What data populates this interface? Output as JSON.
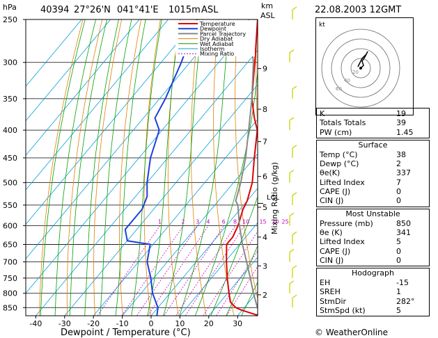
{
  "header": {
    "station": "40394",
    "lat": "27°26'N",
    "lon": "041°41'E",
    "elev": "1015m",
    "asl": "ASL",
    "datetime": "22.08.2003  12GMT"
  },
  "axes": {
    "p_label": "hPa",
    "km_label": "km",
    "asl_label": "ASL",
    "xlabel": "Dewpoint / Temperature (°C)",
    "mixing_label": "Mixing Ratio (g/kg)",
    "lcl_label": "LCL",
    "p_ticks": [
      "250",
      "300",
      "350",
      "400",
      "450",
      "500",
      "550",
      "600",
      "650",
      "700",
      "750",
      "800",
      "850"
    ],
    "t_ticks": [
      "-40",
      "-30",
      "-20",
      "-10",
      "0",
      "10",
      "20",
      "30"
    ],
    "km_ticks": [
      "9",
      "8",
      "7",
      "6",
      "5",
      "4",
      "3",
      "2"
    ],
    "mixing_ticks": [
      "1",
      "2",
      "3",
      "4",
      "6",
      "8",
      "10",
      "15",
      "20",
      "25"
    ]
  },
  "legend": {
    "items": [
      {
        "label": "Temperature",
        "color": "#e00000"
      },
      {
        "label": "Dewpoint",
        "color": "#1a3fe0"
      },
      {
        "label": "Parcel Trajectory",
        "color": "#888888"
      },
      {
        "label": "Dry Adiabat",
        "color": "#e08000"
      },
      {
        "label": "Wet Adiabat",
        "color": "#00a000"
      },
      {
        "label": "Isotherm",
        "color": "#00a0e0"
      },
      {
        "label": "Mixing Ratio",
        "color": "#c000c0"
      }
    ]
  },
  "chart_data": {
    "type": "line",
    "title": "40394  27°26'N  041°41'E  1015m ASL",
    "xlabel": "Dewpoint / Temperature (°C)",
    "ylabel": "hPa",
    "xlim": [
      -40,
      37
    ],
    "ylim": [
      880,
      250
    ],
    "yscale": "log",
    "skew": true,
    "series": [
      {
        "name": "Temperature",
        "color": "#e00000",
        "p": [
          880,
          860,
          850,
          830,
          800,
          750,
          700,
          650,
          630,
          600,
          560,
          540,
          500,
          450,
          400,
          380,
          350,
          300,
          250
        ],
        "t": [
          37.5,
          30,
          27,
          23.5,
          20.5,
          15.5,
          10.5,
          5.5,
          5.5,
          4,
          1,
          0,
          -3.5,
          -10,
          -17,
          -21.5,
          -28,
          -37.5,
          -49
        ]
      },
      {
        "name": "Dewpoint",
        "color": "#1a3fe0",
        "p": [
          880,
          850,
          800,
          750,
          700,
          650,
          640,
          610,
          560,
          530,
          500,
          450,
          400,
          380,
          350,
          300,
          250
        ],
        "t": [
          2,
          0,
          -6,
          -11,
          -17,
          -21,
          -30,
          -34,
          -34,
          -36,
          -40,
          -46,
          -51,
          -56,
          -58,
          -63,
          -70
        ]
      },
      {
        "name": "Parcel Trajectory",
        "color": "#888888",
        "p": [
          880,
          850,
          800,
          750,
          700,
          650,
          600,
          550,
          540,
          500,
          450,
          400,
          350,
          300,
          250
        ],
        "t": [
          38,
          34.5,
          29,
          23.5,
          17.5,
          11,
          4.5,
          -2,
          -4,
          -7.5,
          -13,
          -20,
          -28,
          -38,
          -52
        ]
      }
    ],
    "grid": true
  },
  "indices": {
    "rows": [
      {
        "label": "K",
        "value": "19"
      },
      {
        "label": "Totals Totals",
        "value": "39"
      },
      {
        "label": "PW (cm)",
        "value": "1.45"
      }
    ]
  },
  "surface": {
    "title": "Surface",
    "rows": [
      {
        "label": "Temp (°C)",
        "value": "38"
      },
      {
        "label": "Dewp (°C)",
        "value": "2"
      },
      {
        "label": "θe(K)",
        "value": "337"
      },
      {
        "label": "Lifted Index",
        "value": "7"
      },
      {
        "label": "CAPE (J)",
        "value": "0"
      },
      {
        "label": "CIN (J)",
        "value": "0"
      }
    ]
  },
  "most_unstable": {
    "title": "Most Unstable",
    "rows": [
      {
        "label": "Pressure (mb)",
        "value": "850"
      },
      {
        "label": "θe (K)",
        "value": "341"
      },
      {
        "label": "Lifted Index",
        "value": "5"
      },
      {
        "label": "CAPE (J)",
        "value": "0"
      },
      {
        "label": "CIN (J)",
        "value": "0"
      }
    ]
  },
  "hodograph": {
    "title": "Hodograph",
    "kt_label": "kt",
    "ring_labels": [
      "20",
      "40",
      "60"
    ],
    "rows": [
      {
        "label": "EH",
        "value": "-15"
      },
      {
        "label": "SREH",
        "value": "1"
      },
      {
        "label": "StmDir",
        "value": "282°"
      },
      {
        "label": "StmSpd (kt)",
        "value": "5"
      }
    ]
  },
  "footer": {
    "copyright": "© WeatherOnline"
  }
}
